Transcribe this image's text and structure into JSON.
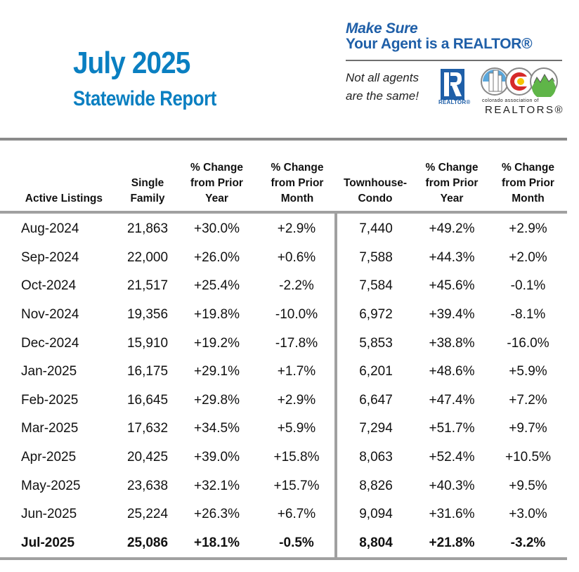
{
  "header": {
    "title": "July 2025",
    "subtitle": "Statewide Report"
  },
  "ad": {
    "headline_line1": "Make Sure",
    "headline_line2": "Your Agent is a REALTOR®",
    "tagline_line1": "Not all agents",
    "tagline_line2": "are the same!",
    "realtor_logo_label": "REALTOR®",
    "car_small_text": "colorado association of",
    "car_big_text": "REALTORS®",
    "brand_color": "#1f5fa8"
  },
  "colors": {
    "title": "#0a7fc1",
    "rules": "#a0a0a0"
  },
  "table": {
    "headers": [
      "Active Listings",
      "Single Family",
      "% Change from Prior Year",
      "% Change from Prior Month",
      "Townhouse-Condo",
      "% Change from Prior Year",
      "% Change from Prior Month"
    ],
    "header_lines": [
      [
        "Active Listings"
      ],
      [
        "Single",
        "Family"
      ],
      [
        "% Change",
        "from Prior",
        "Year"
      ],
      [
        "% Change",
        "from Prior",
        "Month"
      ],
      [
        "Townhouse-",
        "Condo"
      ],
      [
        "% Change",
        "from Prior",
        "Year"
      ],
      [
        "% Change",
        "from Prior",
        "Month"
      ]
    ],
    "rows": [
      [
        "Aug-2024",
        "21,863",
        "+30.0%",
        "+2.9%",
        "7,440",
        "+49.2%",
        "+2.9%"
      ],
      [
        "Sep-2024",
        "22,000",
        "+26.0%",
        "+0.6%",
        "7,588",
        "+44.3%",
        "+2.0%"
      ],
      [
        "Oct-2024",
        "21,517",
        "+25.4%",
        "-2.2%",
        "7,584",
        "+45.6%",
        "-0.1%"
      ],
      [
        "Nov-2024",
        "19,356",
        "+19.8%",
        "-10.0%",
        "6,972",
        "+39.4%",
        "-8.1%"
      ],
      [
        "Dec-2024",
        "15,910",
        "+19.2%",
        "-17.8%",
        "5,853",
        "+38.8%",
        "-16.0%"
      ],
      [
        "Jan-2025",
        "16,175",
        "+29.1%",
        "+1.7%",
        "6,201",
        "+48.6%",
        "+5.9%"
      ],
      [
        "Feb-2025",
        "16,645",
        "+29.8%",
        "+2.9%",
        "6,647",
        "+47.4%",
        "+7.2%"
      ],
      [
        "Mar-2025",
        "17,632",
        "+34.5%",
        "+5.9%",
        "7,294",
        "+51.7%",
        "+9.7%"
      ],
      [
        "Apr-2025",
        "20,425",
        "+39.0%",
        "+15.8%",
        "8,063",
        "+52.4%",
        "+10.5%"
      ],
      [
        "May-2025",
        "23,638",
        "+32.1%",
        "+15.7%",
        "8,826",
        "+40.3%",
        "+9.5%"
      ],
      [
        "Jun-2025",
        "25,224",
        "+26.3%",
        "+6.7%",
        "9,094",
        "+31.6%",
        "+3.0%"
      ],
      [
        "Jul-2025",
        "25,086",
        "+18.1%",
        "-0.5%",
        "8,804",
        "+21.8%",
        "-3.2%"
      ]
    ]
  }
}
